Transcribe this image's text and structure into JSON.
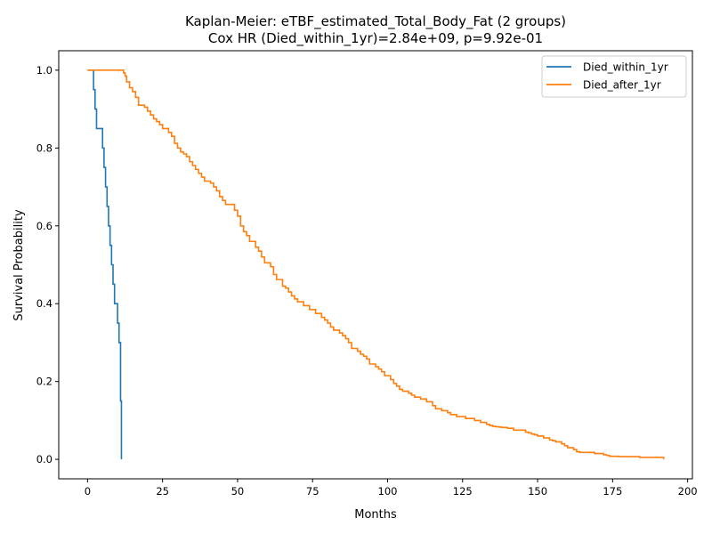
{
  "chart_data": {
    "type": "line",
    "title": "Kaplan-Meier: eTBF_estimated_Total_Body_Fat (2 groups)",
    "subtitle": "Cox HR (Died_within_1yr)=2.84e+09, p=9.92e-01",
    "xlabel": "Months",
    "ylabel": "Survival Probability",
    "xlim": [
      -9.6,
      201.6
    ],
    "ylim": [
      -0.05,
      1.05
    ],
    "xticks": [
      0,
      25,
      50,
      75,
      100,
      125,
      150,
      175,
      200
    ],
    "xtick_labels": [
      "0",
      "25",
      "50",
      "75",
      "100",
      "125",
      "150",
      "175",
      "200"
    ],
    "yticks": [
      0.0,
      0.2,
      0.4,
      0.6,
      0.8,
      1.0
    ],
    "ytick_labels": [
      "0.0",
      "0.2",
      "0.4",
      "0.6",
      "0.8",
      "1.0"
    ],
    "grid": false,
    "legend_position": "top-right",
    "step": "post",
    "series": [
      {
        "name": "Died_within_1yr",
        "color": "#1f77b4",
        "x": [
          0,
          2,
          2.5,
          3,
          5,
          5.5,
          6,
          6.5,
          7,
          7.5,
          8,
          8.5,
          9,
          10,
          10.5,
          11,
          11.3
        ],
        "y": [
          1.0,
          0.95,
          0.9,
          0.85,
          0.8,
          0.75,
          0.7,
          0.65,
          0.6,
          0.55,
          0.5,
          0.45,
          0.4,
          0.35,
          0.3,
          0.15,
          0.0
        ]
      },
      {
        "name": "Died_after_1yr",
        "color": "#ff7f0e",
        "x": [
          0,
          12,
          12.5,
          13,
          14,
          15,
          16,
          17,
          19,
          20,
          21,
          22,
          23,
          24,
          25,
          27,
          28,
          29,
          30,
          31,
          32,
          33,
          34,
          35,
          36,
          37,
          38,
          39,
          41,
          42,
          43,
          44,
          45,
          46,
          49,
          50,
          51,
          52,
          53,
          54,
          56,
          57,
          58,
          59,
          61,
          62,
          63,
          65,
          66,
          67,
          68,
          69,
          70,
          72,
          74,
          76,
          78,
          79,
          80,
          81,
          82,
          84,
          85,
          86,
          87,
          88,
          90,
          91,
          92,
          93,
          94,
          96,
          97,
          98,
          99,
          101,
          102,
          103,
          104,
          105,
          107,
          108,
          109,
          111,
          113,
          115,
          116,
          118,
          120,
          121,
          123,
          126,
          129,
          131,
          133,
          134,
          135,
          136,
          137,
          138,
          140,
          142,
          146,
          147,
          148,
          149,
          150,
          152,
          154,
          155,
          156,
          158,
          159,
          160,
          162,
          163,
          164,
          169,
          172,
          173,
          174,
          175,
          177,
          178,
          184,
          191,
          192
        ],
        "y": [
          1.0,
          0.993,
          0.985,
          0.97,
          0.955,
          0.945,
          0.93,
          0.91,
          0.905,
          0.895,
          0.885,
          0.875,
          0.868,
          0.86,
          0.85,
          0.84,
          0.83,
          0.812,
          0.8,
          0.79,
          0.785,
          0.778,
          0.765,
          0.755,
          0.745,
          0.735,
          0.725,
          0.715,
          0.71,
          0.7,
          0.69,
          0.675,
          0.665,
          0.655,
          0.64,
          0.625,
          0.6,
          0.585,
          0.575,
          0.56,
          0.545,
          0.535,
          0.52,
          0.505,
          0.495,
          0.475,
          0.462,
          0.445,
          0.44,
          0.43,
          0.42,
          0.412,
          0.405,
          0.395,
          0.385,
          0.375,
          0.365,
          0.358,
          0.35,
          0.34,
          0.332,
          0.325,
          0.318,
          0.31,
          0.3,
          0.285,
          0.278,
          0.27,
          0.265,
          0.258,
          0.245,
          0.238,
          0.232,
          0.225,
          0.215,
          0.205,
          0.195,
          0.188,
          0.18,
          0.175,
          0.17,
          0.165,
          0.16,
          0.155,
          0.148,
          0.138,
          0.13,
          0.125,
          0.12,
          0.115,
          0.11,
          0.105,
          0.1,
          0.095,
          0.09,
          0.087,
          0.085,
          0.084,
          0.083,
          0.082,
          0.08,
          0.075,
          0.07,
          0.068,
          0.065,
          0.063,
          0.06,
          0.055,
          0.05,
          0.048,
          0.045,
          0.04,
          0.035,
          0.03,
          0.025,
          0.02,
          0.018,
          0.015,
          0.012,
          0.01,
          0.008,
          0.008,
          0.007,
          0.007,
          0.005,
          0.005,
          0.0
        ]
      }
    ]
  }
}
